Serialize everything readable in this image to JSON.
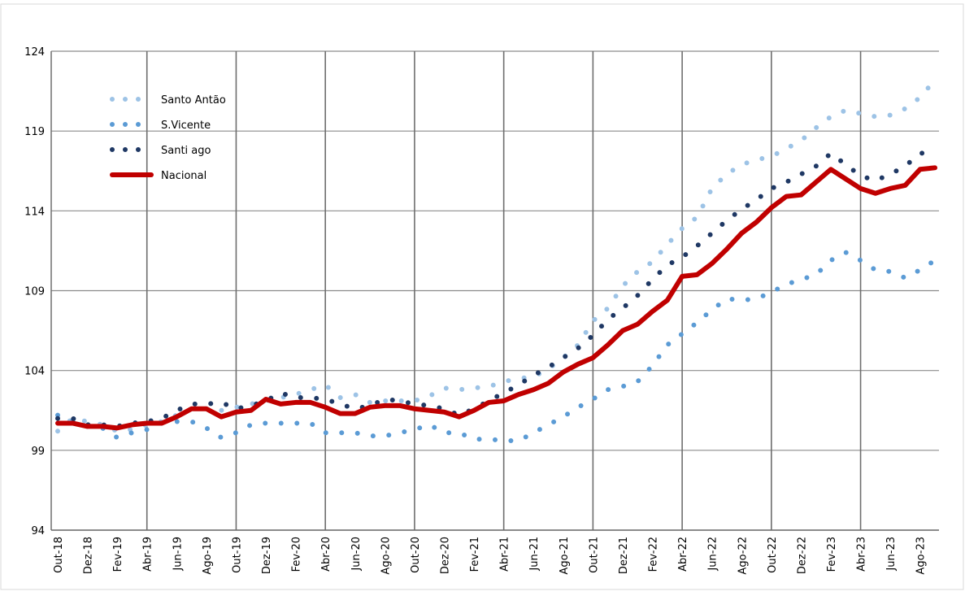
{
  "chart_data": {
    "type": "line",
    "categories": [
      "Out-18",
      null,
      "Dez-18",
      null,
      "Fev-19",
      null,
      "Abr-19",
      null,
      "Jun-19",
      null,
      "Ago-19",
      null,
      "Out-19",
      null,
      "Dez-19",
      null,
      "Fev-20",
      null,
      "Abr-20",
      null,
      "Jun-20",
      null,
      "Ago-20",
      null,
      "Out-20",
      null,
      "Dez-20",
      null,
      "Fev-21",
      null,
      "Abr-21",
      null,
      "Jun-21",
      null,
      "Ago-21",
      null,
      "Out-21",
      null,
      "Dez-21",
      null,
      "Fev-22",
      null,
      "Abr-22",
      null,
      "Jun-22",
      null,
      "Ago-22",
      null,
      "Out-22",
      null,
      "Dez-22",
      null,
      "Fev-23",
      null,
      "Abr-23",
      null,
      "Jun-23",
      null,
      "Ago-23",
      null
    ],
    "series": [
      {
        "name": "Santo Antão",
        "color": "#9dc3e6",
        "style": "dotted",
        "values": [
          100.2,
          101.0,
          100.8,
          100.6,
          100.2,
          100.3,
          100.6,
          100.8,
          101.2,
          101.6,
          101.6,
          101.5,
          101.7,
          101.9,
          102.1,
          102.3,
          102.5,
          102.8,
          103.1,
          102.3,
          102.5,
          102.0,
          102.1,
          102.1,
          102.1,
          102.4,
          102.9,
          102.8,
          102.9,
          103.0,
          103.3,
          103.5,
          103.6,
          104.1,
          104.8,
          105.6,
          107.1,
          107.9,
          109.3,
          110.2,
          110.8,
          111.9,
          112.9,
          113.6,
          115.4,
          116.3,
          116.9,
          117.2,
          117.4,
          117.9,
          118.4,
          119.2,
          119.9,
          120.3,
          120.1,
          119.9,
          120.0,
          120.4,
          121.1,
          122.2
        ]
      },
      {
        "name": "S.Vicente",
        "color": "#5b9bd5",
        "style": "dotted",
        "values": [
          101.2,
          100.9,
          100.5,
          100.4,
          99.8,
          100.1,
          100.3,
          100.7,
          100.8,
          100.8,
          100.4,
          99.8,
          100.1,
          100.6,
          100.7,
          100.7,
          100.7,
          100.7,
          100.1,
          100.1,
          100.1,
          99.9,
          99.9,
          100.1,
          100.3,
          100.6,
          100.1,
          100.1,
          99.7,
          99.7,
          99.6,
          99.6,
          100.1,
          100.6,
          101.1,
          101.7,
          102.2,
          102.8,
          103.0,
          103.3,
          104.3,
          105.6,
          106.3,
          107.0,
          107.8,
          108.5,
          108.4,
          108.5,
          108.9,
          109.4,
          109.7,
          110.0,
          110.9,
          111.4,
          110.9,
          110.3,
          110.2,
          109.8,
          110.3,
          110.9
        ]
      },
      {
        "name": "Santi ago",
        "color": "#1f3864",
        "style": "dotted",
        "values": [
          101.0,
          101.0,
          100.6,
          100.6,
          100.5,
          100.7,
          100.8,
          101.0,
          101.5,
          101.9,
          101.9,
          102.0,
          101.6,
          101.8,
          102.1,
          102.6,
          102.3,
          102.3,
          102.2,
          101.9,
          101.6,
          101.8,
          102.2,
          102.1,
          101.9,
          101.8,
          101.6,
          101.2,
          101.6,
          102.1,
          102.6,
          103.1,
          103.7,
          104.2,
          104.8,
          105.4,
          106.2,
          107.2,
          107.9,
          108.7,
          109.7,
          110.6,
          111.1,
          111.8,
          112.6,
          113.4,
          114.1,
          114.7,
          115.4,
          115.8,
          116.3,
          116.8,
          117.6,
          116.9,
          116.2,
          115.9,
          116.3,
          116.8,
          117.6,
          117.7
        ]
      },
      {
        "name": "Nacional",
        "color": "#c00000",
        "style": "solid",
        "values": [
          100.7,
          100.7,
          100.5,
          100.5,
          100.4,
          100.6,
          100.7,
          100.7,
          101.1,
          101.6,
          101.6,
          101.1,
          101.4,
          101.5,
          102.2,
          101.9,
          102.0,
          102.0,
          101.7,
          101.3,
          101.3,
          101.7,
          101.8,
          101.8,
          101.6,
          101.5,
          101.4,
          101.1,
          101.5,
          102.0,
          102.1,
          102.5,
          102.8,
          103.2,
          103.9,
          104.4,
          104.8,
          105.6,
          106.5,
          106.9,
          107.7,
          108.4,
          109.9,
          110.0,
          110.7,
          111.6,
          112.6,
          113.3,
          114.2,
          114.9,
          115.0,
          115.8,
          116.6,
          116.0,
          115.4,
          115.1,
          115.4,
          115.6,
          116.6,
          116.7
        ]
      }
    ],
    "ylim": [
      94,
      124
    ],
    "yticks": [
      94,
      99,
      104,
      109,
      114,
      119,
      124
    ],
    "grid": true,
    "legend": "top-left"
  }
}
